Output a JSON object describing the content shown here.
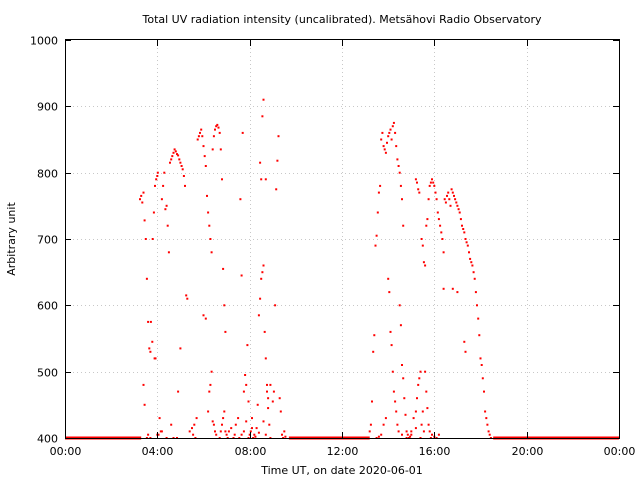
{
  "chart_data": {
    "type": "scatter",
    "title": "Total UV radiation intensity (uncalibrated). Metsähovi Radio Observatory",
    "xlabel": "Time UT, on date 2020-06-01",
    "ylabel": "Arbitrary unit",
    "xlim": [
      0,
      24
    ],
    "ylim": [
      400,
      1000
    ],
    "x_ticks": [
      "00:00",
      "04:00",
      "08:00",
      "12:00",
      "16:00",
      "20:00",
      "00:00"
    ],
    "y_ticks": [
      "400",
      "500",
      "600",
      "700",
      "800",
      "900",
      "1000"
    ],
    "grid": true,
    "point_color": "#ff0000",
    "baseline": {
      "x_from": 0,
      "x_to": 3.3,
      "y": 400
    },
    "baseline_night": {
      "x_from": 18.55,
      "x_to": 24,
      "y": 400
    },
    "baseline_midday": {
      "x_from": 9.7,
      "x_to": 13.2,
      "y": 400
    },
    "series": [
      {
        "points": [
          [
            3.25,
            760
          ],
          [
            3.3,
            765
          ],
          [
            3.35,
            755
          ],
          [
            3.4,
            770
          ],
          [
            3.45,
            728
          ],
          [
            3.5,
            700
          ],
          [
            3.55,
            640
          ],
          [
            3.6,
            575
          ],
          [
            3.65,
            535
          ],
          [
            3.7,
            530
          ],
          [
            3.72,
            575
          ],
          [
            3.78,
            545
          ],
          [
            3.8,
            700
          ],
          [
            3.85,
            740
          ],
          [
            3.9,
            780
          ],
          [
            3.95,
            790
          ],
          [
            4.0,
            795
          ],
          [
            4.02,
            800
          ],
          [
            3.88,
            520
          ],
          [
            3.92,
            520
          ],
          [
            4.05,
            405
          ],
          [
            4.1,
            430
          ],
          [
            4.15,
            410
          ],
          [
            4.2,
            760
          ],
          [
            4.25,
            780
          ],
          [
            4.3,
            800
          ],
          [
            4.35,
            745
          ],
          [
            4.4,
            750
          ],
          [
            4.45,
            720
          ],
          [
            4.5,
            680
          ],
          [
            4.55,
            815
          ],
          [
            4.6,
            820
          ],
          [
            4.65,
            825
          ],
          [
            4.7,
            830
          ],
          [
            4.75,
            835
          ],
          [
            4.8,
            832
          ],
          [
            4.85,
            828
          ],
          [
            4.9,
            826
          ],
          [
            4.95,
            820
          ],
          [
            5.0,
            815
          ],
          [
            5.05,
            810
          ],
          [
            5.1,
            805
          ],
          [
            5.15,
            795
          ],
          [
            5.2,
            780
          ],
          [
            5.25,
            615
          ],
          [
            5.3,
            610
          ],
          [
            5.0,
            535
          ],
          [
            4.9,
            470
          ],
          [
            4.85,
            400
          ],
          [
            4.7,
            400
          ],
          [
            3.4,
            480
          ],
          [
            3.45,
            450
          ],
          [
            3.55,
            400
          ],
          [
            3.6,
            405
          ],
          [
            3.7,
            400
          ],
          [
            4.0,
            405
          ],
          [
            4.2,
            410
          ],
          [
            4.4,
            400
          ],
          [
            4.6,
            420
          ],
          [
            5.4,
            410
          ],
          [
            5.5,
            415
          ],
          [
            5.55,
            405
          ],
          [
            5.6,
            420
          ],
          [
            5.65,
            400
          ],
          [
            5.7,
            430
          ],
          [
            5.75,
            850
          ],
          [
            5.8,
            855
          ],
          [
            5.85,
            860
          ],
          [
            5.9,
            865
          ],
          [
            5.95,
            855
          ],
          [
            6.0,
            840
          ],
          [
            6.05,
            825
          ],
          [
            6.1,
            810
          ],
          [
            6.15,
            765
          ],
          [
            6.2,
            740
          ],
          [
            6.25,
            720
          ],
          [
            6.3,
            700
          ],
          [
            6.35,
            680
          ],
          [
            6.4,
            835
          ],
          [
            6.45,
            855
          ],
          [
            6.5,
            865
          ],
          [
            6.55,
            870
          ],
          [
            6.6,
            872
          ],
          [
            6.65,
            868
          ],
          [
            6.7,
            860
          ],
          [
            6.75,
            835
          ],
          [
            6.8,
            790
          ],
          [
            6.85,
            655
          ],
          [
            6.9,
            600
          ],
          [
            6.95,
            560
          ],
          [
            6.0,
            585
          ],
          [
            6.1,
            580
          ],
          [
            6.2,
            440
          ],
          [
            6.25,
            470
          ],
          [
            6.3,
            480
          ],
          [
            6.35,
            500
          ],
          [
            6.4,
            425
          ],
          [
            6.45,
            420
          ],
          [
            6.5,
            410
          ],
          [
            6.55,
            405
          ],
          [
            6.7,
            400
          ],
          [
            6.75,
            410
          ],
          [
            6.8,
            420
          ],
          [
            6.85,
            430
          ],
          [
            6.9,
            440
          ],
          [
            6.95,
            410
          ],
          [
            7.0,
            405
          ],
          [
            7.05,
            400
          ],
          [
            7.1,
            410
          ],
          [
            7.2,
            415
          ],
          [
            7.3,
            400
          ],
          [
            7.35,
            405
          ],
          [
            7.4,
            420
          ],
          [
            7.5,
            430
          ],
          [
            7.6,
            760
          ],
          [
            7.65,
            645
          ],
          [
            7.7,
            860
          ],
          [
            7.75,
            470
          ],
          [
            7.8,
            495
          ],
          [
            7.85,
            480
          ],
          [
            7.9,
            540
          ],
          [
            7.95,
            400
          ],
          [
            8.0,
            405
          ],
          [
            8.05,
            410
          ],
          [
            8.1,
            430
          ],
          [
            8.15,
            400
          ],
          [
            8.2,
            405
          ],
          [
            8.3,
            415
          ],
          [
            8.35,
            450
          ],
          [
            8.4,
            585
          ],
          [
            8.45,
            610
          ],
          [
            8.5,
            640
          ],
          [
            8.55,
            650
          ],
          [
            8.6,
            660
          ],
          [
            8.65,
            560
          ],
          [
            8.7,
            520
          ],
          [
            8.75,
            480
          ],
          [
            8.8,
            445
          ],
          [
            8.85,
            420
          ],
          [
            8.9,
            400
          ],
          [
            8.45,
            815
          ],
          [
            8.5,
            790
          ],
          [
            8.55,
            885
          ],
          [
            8.6,
            910
          ],
          [
            8.7,
            790
          ],
          [
            8.75,
            470
          ],
          [
            8.8,
            460
          ],
          [
            8.9,
            480
          ],
          [
            9.0,
            455
          ],
          [
            9.05,
            470
          ],
          [
            9.1,
            600
          ],
          [
            9.15,
            775
          ],
          [
            9.2,
            818
          ],
          [
            9.25,
            855
          ],
          [
            9.3,
            460
          ],
          [
            9.35,
            440
          ],
          [
            9.4,
            405
          ],
          [
            9.45,
            400
          ],
          [
            9.5,
            410
          ],
          [
            9.55,
            402
          ],
          [
            7.55,
            400
          ],
          [
            7.65,
            405
          ],
          [
            7.75,
            410
          ],
          [
            7.85,
            425
          ],
          [
            7.95,
            455
          ],
          [
            8.1,
            415
          ],
          [
            8.25,
            402
          ],
          [
            8.4,
            408
          ],
          [
            8.6,
            425
          ],
          [
            8.7,
            405
          ],
          [
            13.2,
            410
          ],
          [
            13.25,
            420
          ],
          [
            13.3,
            455
          ],
          [
            13.35,
            530
          ],
          [
            13.4,
            555
          ],
          [
            13.45,
            690
          ],
          [
            13.5,
            705
          ],
          [
            13.55,
            740
          ],
          [
            13.6,
            770
          ],
          [
            13.65,
            780
          ],
          [
            13.7,
            850
          ],
          [
            13.75,
            860
          ],
          [
            13.8,
            840
          ],
          [
            13.85,
            835
          ],
          [
            13.9,
            830
          ],
          [
            13.95,
            845
          ],
          [
            14.0,
            855
          ],
          [
            14.05,
            860
          ],
          [
            14.1,
            865
          ],
          [
            14.15,
            850
          ],
          [
            14.2,
            870
          ],
          [
            14.25,
            875
          ],
          [
            14.3,
            860
          ],
          [
            14.35,
            840
          ],
          [
            14.4,
            820
          ],
          [
            14.45,
            810
          ],
          [
            14.5,
            800
          ],
          [
            14.55,
            780
          ],
          [
            14.6,
            760
          ],
          [
            14.65,
            720
          ],
          [
            14.0,
            640
          ],
          [
            14.05,
            620
          ],
          [
            14.1,
            560
          ],
          [
            14.15,
            540
          ],
          [
            14.2,
            500
          ],
          [
            14.25,
            470
          ],
          [
            14.3,
            455
          ],
          [
            14.35,
            440
          ],
          [
            14.4,
            420
          ],
          [
            14.45,
            410
          ],
          [
            14.5,
            600
          ],
          [
            14.55,
            570
          ],
          [
            14.6,
            510
          ],
          [
            14.65,
            490
          ],
          [
            14.7,
            460
          ],
          [
            14.75,
            435
          ],
          [
            14.8,
            410
          ],
          [
            14.85,
            405
          ],
          [
            14.9,
            400
          ],
          [
            14.95,
            402
          ],
          [
            15.0,
            410
          ],
          [
            15.1,
            430
          ],
          [
            15.2,
            440
          ],
          [
            15.25,
            460
          ],
          [
            15.3,
            480
          ],
          [
            15.35,
            490
          ],
          [
            15.4,
            500
          ],
          [
            15.45,
            420
          ],
          [
            15.5,
            440
          ],
          [
            15.55,
            410
          ],
          [
            13.5,
            400
          ],
          [
            13.6,
            402
          ],
          [
            13.7,
            405
          ],
          [
            13.8,
            420
          ],
          [
            13.9,
            430
          ],
          [
            14.6,
            405
          ],
          [
            14.8,
            400
          ],
          [
            15.0,
            405
          ],
          [
            15.2,
            415
          ],
          [
            15.4,
            400
          ],
          [
            15.2,
            790
          ],
          [
            15.25,
            785
          ],
          [
            15.3,
            775
          ],
          [
            15.35,
            770
          ],
          [
            15.45,
            700
          ],
          [
            15.5,
            690
          ],
          [
            15.55,
            665
          ],
          [
            15.6,
            660
          ],
          [
            15.65,
            720
          ],
          [
            15.7,
            730
          ],
          [
            15.75,
            760
          ],
          [
            15.8,
            780
          ],
          [
            15.85,
            785
          ],
          [
            15.9,
            790
          ],
          [
            15.95,
            785
          ],
          [
            16.0,
            780
          ],
          [
            16.05,
            770
          ],
          [
            16.1,
            760
          ],
          [
            16.15,
            740
          ],
          [
            16.2,
            730
          ],
          [
            16.25,
            720
          ],
          [
            16.3,
            710
          ],
          [
            16.35,
            700
          ],
          [
            16.4,
            680
          ],
          [
            16.45,
            760
          ],
          [
            16.5,
            755
          ],
          [
            16.55,
            765
          ],
          [
            16.6,
            770
          ],
          [
            16.65,
            760
          ],
          [
            16.7,
            750
          ],
          [
            16.75,
            775
          ],
          [
            16.8,
            770
          ],
          [
            16.85,
            765
          ],
          [
            16.9,
            760
          ],
          [
            16.95,
            755
          ],
          [
            17.0,
            750
          ],
          [
            17.05,
            745
          ],
          [
            17.1,
            740
          ],
          [
            17.15,
            730
          ],
          [
            17.2,
            720
          ],
          [
            17.25,
            715
          ],
          [
            17.3,
            710
          ],
          [
            17.35,
            700
          ],
          [
            17.4,
            695
          ],
          [
            17.45,
            690
          ],
          [
            17.5,
            680
          ],
          [
            17.55,
            670
          ],
          [
            17.6,
            665
          ],
          [
            17.65,
            660
          ],
          [
            17.7,
            650
          ],
          [
            17.75,
            640
          ],
          [
            17.8,
            620
          ],
          [
            17.85,
            600
          ],
          [
            17.9,
            580
          ],
          [
            17.95,
            555
          ],
          [
            18.0,
            520
          ],
          [
            18.05,
            510
          ],
          [
            18.1,
            490
          ],
          [
            18.15,
            470
          ],
          [
            18.2,
            440
          ],
          [
            18.25,
            430
          ],
          [
            18.3,
            420
          ],
          [
            18.35,
            410
          ],
          [
            18.4,
            405
          ],
          [
            18.45,
            400
          ],
          [
            17.3,
            545
          ],
          [
            17.35,
            530
          ],
          [
            17.0,
            620
          ],
          [
            16.8,
            625
          ],
          [
            16.4,
            625
          ],
          [
            15.6,
            500
          ],
          [
            15.65,
            470
          ],
          [
            15.7,
            445
          ],
          [
            15.75,
            420
          ],
          [
            15.8,
            410
          ],
          [
            15.85,
            400
          ],
          [
            15.9,
            405
          ],
          [
            16.0,
            402
          ],
          [
            16.1,
            400
          ],
          [
            16.2,
            405
          ]
        ]
      }
    ]
  }
}
